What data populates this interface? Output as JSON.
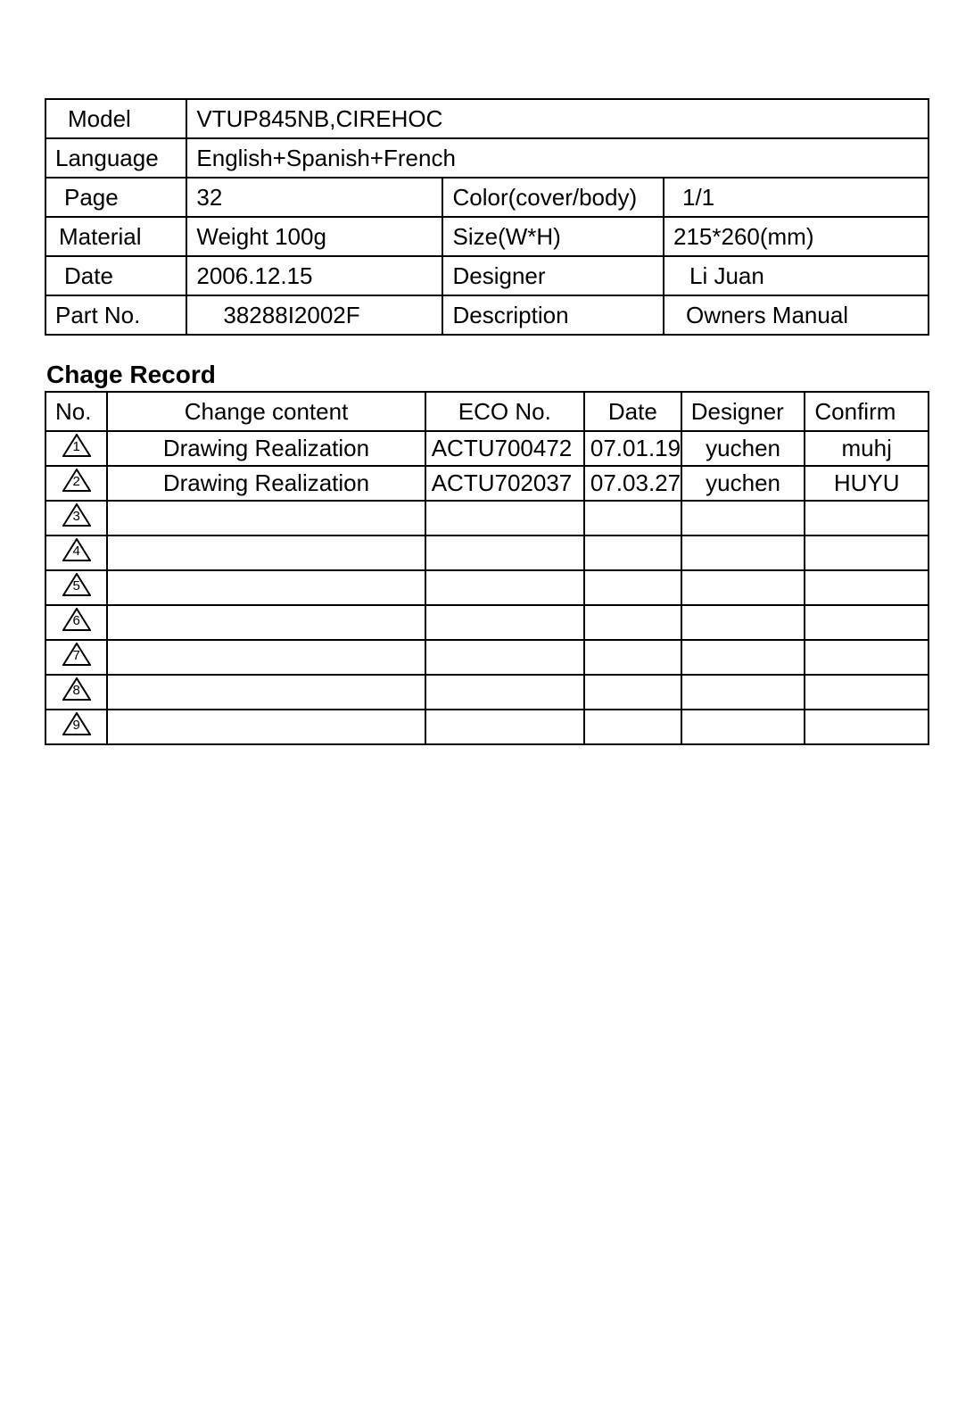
{
  "info": {
    "labels": {
      "model": "Model",
      "language": "Language",
      "page": "Page",
      "color": "Color(cover/body)",
      "material": "Material",
      "size": "Size(W*H)",
      "date": "Date",
      "designer": "Designer",
      "partno": "Part No.",
      "description": "Description"
    },
    "values": {
      "model": "VTUP845NB,CIREHOC",
      "language": "English+Spanish+French",
      "page": "32",
      "color": "1/1",
      "material": "Weight 100g",
      "size": "215*260(mm)",
      "date": "2006.12.15",
      "designer": "Li Juan",
      "partno": "38288I2002F",
      "description": "Owners Manual"
    }
  },
  "change_record": {
    "title": "Chage Record",
    "headers": {
      "no": "No.",
      "content": "Change content",
      "eco": "ECO No.",
      "date": "Date",
      "designer": "Designer",
      "confirm": "Confirm"
    },
    "rows": [
      {
        "no": "1",
        "content": "Drawing Realization",
        "eco": "ACTU700472",
        "date": "07.01.19",
        "designer": "yuchen",
        "confirm": "muhj"
      },
      {
        "no": "2",
        "content": "Drawing Realization",
        "eco": "ACTU702037",
        "date": "07.03.27",
        "designer": "yuchen",
        "confirm": "HUYU"
      },
      {
        "no": "3",
        "content": "",
        "eco": "",
        "date": "",
        "designer": "",
        "confirm": ""
      },
      {
        "no": "4",
        "content": "",
        "eco": "",
        "date": "",
        "designer": "",
        "confirm": ""
      },
      {
        "no": "5",
        "content": "",
        "eco": "",
        "date": "",
        "designer": "",
        "confirm": ""
      },
      {
        "no": "6",
        "content": "",
        "eco": "",
        "date": "",
        "designer": "",
        "confirm": ""
      },
      {
        "no": "7",
        "content": "",
        "eco": "",
        "date": "",
        "designer": "",
        "confirm": ""
      },
      {
        "no": "8",
        "content": "",
        "eco": "",
        "date": "",
        "designer": "",
        "confirm": ""
      },
      {
        "no": "9",
        "content": "",
        "eco": "",
        "date": "",
        "designer": "",
        "confirm": ""
      }
    ]
  },
  "style": {
    "border_color": "#000000",
    "background_color": "#ffffff",
    "font_family": "Arial",
    "cell_fontsize": 26,
    "title_fontsize": 28,
    "triangle_stroke": "#000000",
    "triangle_number_fontsize": 15
  }
}
